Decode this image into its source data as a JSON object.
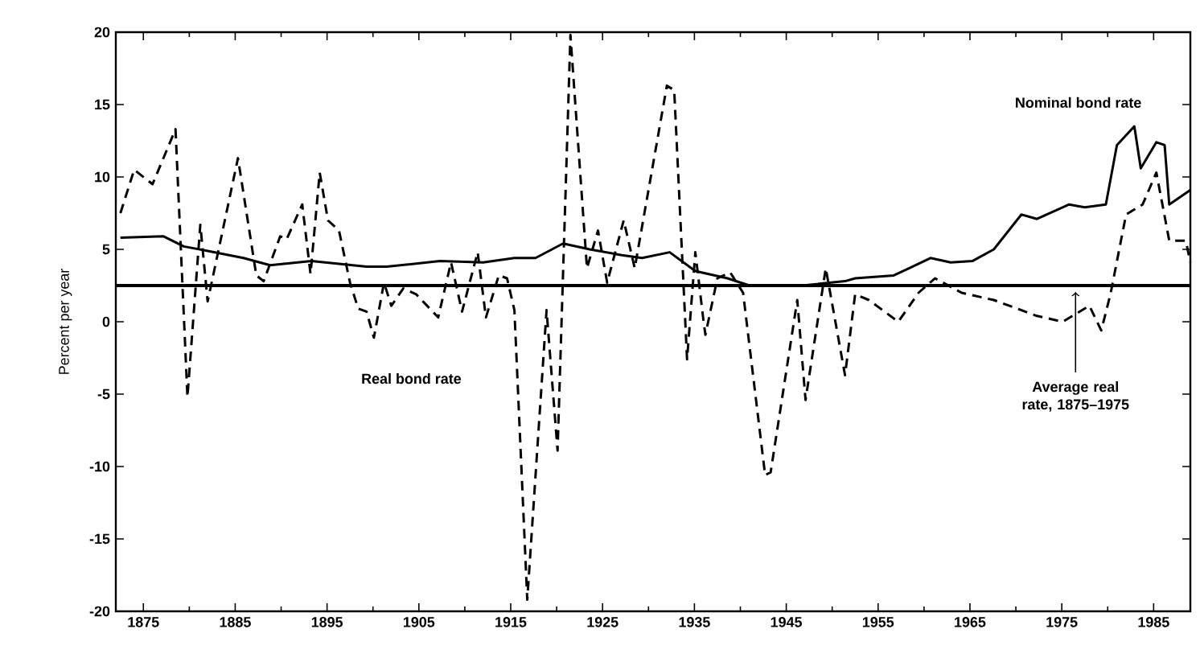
{
  "chart_data": {
    "type": "line",
    "ylabel": "Percent per year",
    "xlim": [
      1872,
      1989
    ],
    "xticks": [
      1875,
      1885,
      1895,
      1905,
      1915,
      1925,
      1935,
      1945,
      1955,
      1965,
      1975,
      1985
    ],
    "ylim": [
      -20,
      20
    ],
    "yticks": [
      -20,
      -15,
      -10,
      -5,
      0,
      5,
      10,
      15,
      20
    ],
    "ref_lines": [
      {
        "axis": "y",
        "value": 2.5,
        "label": "Average real rate, 1875–1975",
        "color": "#000000"
      }
    ],
    "series": [
      {
        "name": "Nominal bond rate",
        "color": "#000000",
        "line_style": "solid",
        "x": [
          1872.5,
          1877.2,
          1879.4,
          1881.9,
          1885.9,
          1888.8,
          1893.3,
          1899.3,
          1901.5,
          1907.3,
          1912,
          1915.4,
          1917.7,
          1920.7,
          1923.6,
          1927.1,
          1929.3,
          1932.3,
          1935.1,
          1938.6,
          1941,
          1946.7,
          1951.4,
          1952.5,
          1956.7,
          1958.4,
          1960.7,
          1962.9,
          1965.3,
          1967.6,
          1970.6,
          1972.3,
          1975.8,
          1977.5,
          1979.8,
          1981,
          1982.9,
          1983.6,
          1985.3,
          1986.2,
          1986.7,
          1989
        ],
        "values": [
          5.8,
          5.9,
          5.2,
          4.9,
          4.4,
          3.9,
          4.2,
          3.8,
          3.8,
          4.2,
          4.1,
          4.4,
          4.4,
          5.4,
          5.0,
          4.6,
          4.4,
          4.8,
          3.5,
          3.0,
          2.5,
          2.5,
          2.8,
          3.0,
          3.2,
          3.7,
          4.4,
          4.1,
          4.2,
          5.0,
          7.4,
          7.1,
          8.1,
          7.9,
          8.1,
          12.2,
          13.5,
          10.6,
          12.4,
          12.2,
          8.1,
          9.1
        ]
      },
      {
        "name": "Real bond rate",
        "color": "#000000",
        "line_style": "dashed",
        "x": [
          1872.5,
          1874,
          1876,
          1878.5,
          1879.8,
          1881.2,
          1882,
          1885.3,
          1887.3,
          1888.1,
          1889.9,
          1890.6,
          1892.3,
          1893.2,
          1894.2,
          1895.1,
          1896.3,
          1897.5,
          1898.4,
          1899.3,
          1900.1,
          1901.2,
          1902,
          1903.3,
          1904.7,
          1907.1,
          1908.5,
          1909.7,
          1911.4,
          1912.3,
          1913.7,
          1914.6,
          1915.4,
          1916.8,
          1918.9,
          1920.1,
          1921.5,
          1923.3,
          1924.5,
          1925.5,
          1927.3,
          1928.5,
          1932,
          1932.8,
          1934.2,
          1935.1,
          1936,
          1936.2,
          1937.5,
          1938.9,
          1940.3,
          1942.7,
          1943.3,
          1946.2,
          1947.1,
          1949.3,
          1951.4,
          1952.5,
          1954,
          1957.2,
          1959.4,
          1961.2,
          1964.1,
          1967.6,
          1972.3,
          1975.1,
          1978,
          1979.3,
          1980.3,
          1982,
          1983.8,
          1985.3,
          1986.7,
          1988.5,
          1989
        ],
        "values": [
          7.5,
          10.5,
          9.5,
          13.3,
          -5.2,
          6.7,
          1.4,
          11.3,
          3.2,
          2.8,
          5.9,
          5.7,
          8.1,
          3.3,
          10.3,
          7.0,
          6.3,
          2.7,
          0.9,
          0.7,
          -1.1,
          2.7,
          1.1,
          2.3,
          1.9,
          0.3,
          4.1,
          0.7,
          4.8,
          0.3,
          3.2,
          3.0,
          0.8,
          -19.2,
          0.8,
          -8.9,
          19.8,
          3.7,
          6.3,
          2.7,
          7.0,
          3.7,
          16.3,
          16.0,
          -2.6,
          4.8,
          0.0,
          -0.9,
          3.0,
          3.4,
          2.0,
          -10.6,
          -10.4,
          1.5,
          -5.4,
          3.7,
          -3.7,
          1.9,
          1.5,
          0.0,
          2.0,
          3.0,
          2.0,
          1.5,
          0.4,
          0.0,
          1.1,
          -0.6,
          1.9,
          7.4,
          8.1,
          10.3,
          5.6,
          5.6,
          4.1
        ]
      }
    ]
  }
}
